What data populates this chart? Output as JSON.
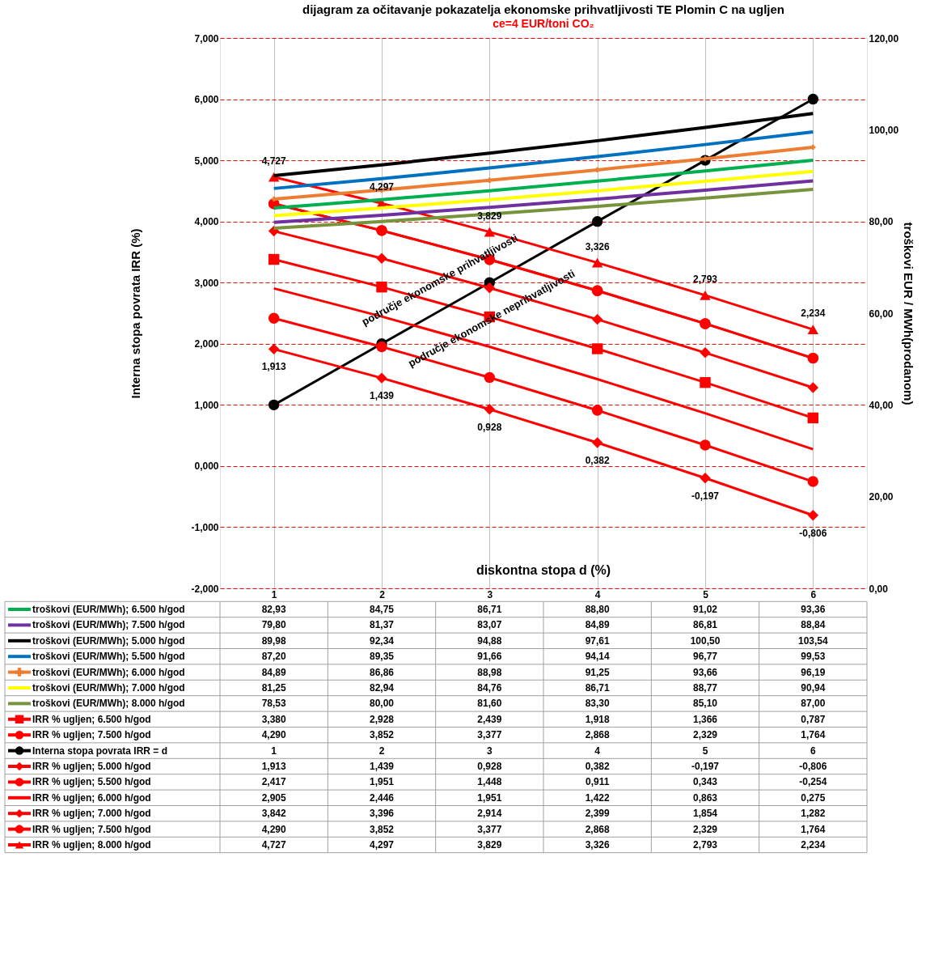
{
  "chart_data": {
    "type": "line",
    "title": "dijagram za očitavanje pokazatelja ekonomske prihvatljivosti TE Plomin C na ugljen",
    "subtitle": "ce=4 EUR/toni CO₂",
    "xlabel": "diskontna stopa d (%)",
    "ylabel": "Interna stopa povrata IRR  (%)",
    "y2label": "troškovi   EUR / MWh(prodanom)",
    "categories": [
      "1",
      "2",
      "3",
      "4",
      "5",
      "6"
    ],
    "ylim": [
      -2,
      7
    ],
    "yticks": [
      {
        "value": -2,
        "label": "-2,000"
      },
      {
        "value": -1,
        "label": "-1,000"
      },
      {
        "value": 0,
        "label": "0,000"
      },
      {
        "value": 1,
        "label": "1,000"
      },
      {
        "value": 2,
        "label": "2,000"
      },
      {
        "value": 3,
        "label": "3,000"
      },
      {
        "value": 4,
        "label": "4,000"
      },
      {
        "value": 5,
        "label": "5,000"
      },
      {
        "value": 6,
        "label": "6,000"
      },
      {
        "value": 7,
        "label": "7,000"
      }
    ],
    "y2lim": [
      0,
      120
    ],
    "y2ticks": [
      {
        "value": 0,
        "label": "0,00"
      },
      {
        "value": 20,
        "label": "20,00"
      },
      {
        "value": 40,
        "label": "40,00"
      },
      {
        "value": 60,
        "label": "60,00"
      },
      {
        "value": 80,
        "label": "80,00"
      },
      {
        "value": 100,
        "label": "100,00"
      },
      {
        "value": 120,
        "label": "120,00"
      }
    ],
    "grid": true,
    "legend": "bottom",
    "series": [
      {
        "name": "troškovi (EUR/MWh); 6.500 h/god",
        "axis": "y2",
        "color": "#00b050",
        "marker": "none",
        "values": [
          82.93,
          84.75,
          86.71,
          88.8,
          91.02,
          93.36
        ],
        "value_labels": [
          "82,93",
          "84,75",
          "86,71",
          "88,80",
          "91,02",
          "93,36"
        ]
      },
      {
        "name": "troškovi (EUR/MWh); 7.500 h/god",
        "axis": "y2",
        "color": "#7030a0",
        "marker": "none",
        "values": [
          79.8,
          81.37,
          83.07,
          84.89,
          86.81,
          88.84
        ],
        "value_labels": [
          "79,80",
          "81,37",
          "83,07",
          "84,89",
          "86,81",
          "88,84"
        ]
      },
      {
        "name": "troškovi (EUR/MWh); 5.000 h/god",
        "axis": "y2",
        "color": "#000000",
        "marker": "none",
        "values": [
          89.98,
          92.34,
          94.88,
          97.61,
          100.5,
          103.54
        ],
        "value_labels": [
          "89,98",
          "92,34",
          "94,88",
          "97,61",
          "100,50",
          "103,54"
        ]
      },
      {
        "name": "troškovi (EUR/MWh); 5.500 h/god",
        "axis": "y2",
        "color": "#0070c0",
        "marker": "none",
        "values": [
          87.2,
          89.35,
          91.66,
          94.14,
          96.77,
          99.53
        ],
        "value_labels": [
          "87,20",
          "89,35",
          "91,66",
          "94,14",
          "96,77",
          "99,53"
        ]
      },
      {
        "name": "troškovi (EUR/MWh); 6.000 h/god",
        "axis": "y2",
        "color": "#ed7d31",
        "marker": "cross",
        "values": [
          84.89,
          86.86,
          88.98,
          91.25,
          93.66,
          96.19
        ],
        "value_labels": [
          "84,89",
          "86,86",
          "88,98",
          "91,25",
          "93,66",
          "96,19"
        ]
      },
      {
        "name": "troškovi (EUR/MWh); 7.000 h/god",
        "axis": "y2",
        "color": "#ffff00",
        "marker": "none",
        "values": [
          81.25,
          82.94,
          84.76,
          86.71,
          88.77,
          90.94
        ],
        "value_labels": [
          "81,25",
          "82,94",
          "84,76",
          "86,71",
          "88,77",
          "90,94"
        ]
      },
      {
        "name": "troškovi (EUR/MWh); 8.000 h/god",
        "axis": "y2",
        "color": "#77933c",
        "marker": "none",
        "values": [
          78.53,
          80.0,
          81.6,
          83.3,
          85.1,
          87.0
        ],
        "value_labels": [
          "78,53",
          "80,00",
          "81,60",
          "83,30",
          "85,10",
          "87,00"
        ]
      },
      {
        "name": "IRR % ugljen; 6.500 h/god",
        "color": "#ff0000",
        "marker": "square",
        "values": [
          3.38,
          2.928,
          2.439,
          1.918,
          1.366,
          0.787
        ],
        "value_labels": [
          "3,380",
          "2,928",
          "2,439",
          "1,918",
          "1,366",
          "0,787"
        ]
      },
      {
        "name": "IRR % ugljen; 7.500 h/god",
        "color": "#ff0000",
        "marker": "circle",
        "values": [
          4.29,
          3.852,
          3.377,
          2.868,
          2.329,
          1.764
        ],
        "value_labels": [
          "4,290",
          "3,852",
          "3,377",
          "2,868",
          "2,329",
          "1,764"
        ]
      },
      {
        "name": "Interna stopa povrata IRR = d",
        "color": "#000000",
        "marker": "circle",
        "values": [
          1,
          2,
          3,
          4,
          5,
          6
        ],
        "value_labels": [
          "1",
          "2",
          "3",
          "4",
          "5",
          "6"
        ]
      },
      {
        "name": "IRR % ugljen; 5.000 h/god",
        "color": "#ff0000",
        "marker": "diamond",
        "values": [
          1.913,
          1.439,
          0.928,
          0.382,
          -0.197,
          -0.806
        ],
        "value_labels": [
          "1,913",
          "1,439",
          "0,928",
          "0,382",
          "-0,197",
          "-0,806"
        ]
      },
      {
        "name": "IRR % ugljen; 5.500 h/god",
        "color": "#ff0000",
        "marker": "circle",
        "values": [
          2.417,
          1.951,
          1.448,
          0.911,
          0.343,
          -0.254
        ],
        "value_labels": [
          "2,417",
          "1,951",
          "1,448",
          "0,911",
          "0,343",
          "-0,254"
        ]
      },
      {
        "name": "IRR % ugljen; 6.000 h/god",
        "color": "#ff0000",
        "marker": "none",
        "values": [
          2.905,
          2.446,
          1.951,
          1.422,
          0.863,
          0.275
        ],
        "value_labels": [
          "2,905",
          "2,446",
          "1,951",
          "1,422",
          "0,863",
          "0,275"
        ]
      },
      {
        "name": "IRR % ugljen; 7.000 h/god",
        "color": "#ff0000",
        "marker": "diamond",
        "values": [
          3.842,
          3.396,
          2.914,
          2.399,
          1.854,
          1.282
        ],
        "value_labels": [
          "3,842",
          "3,396",
          "2,914",
          "2,399",
          "1,854",
          "1,282"
        ]
      },
      {
        "name": "IRR % ugljen; 7.500 h/god",
        "color": "#ff0000",
        "marker": "circle",
        "values": [
          4.29,
          3.852,
          3.377,
          2.868,
          2.329,
          1.764
        ],
        "value_labels": [
          "4,290",
          "3,852",
          "3,377",
          "2,868",
          "2,329",
          "1,764"
        ]
      },
      {
        "name": "IRR % ugljen; 8.000 h/god",
        "color": "#ff0000",
        "marker": "triangle",
        "values": [
          4.727,
          4.297,
          3.829,
          3.326,
          2.793,
          2.234
        ],
        "value_labels": [
          "4,727",
          "4,297",
          "3,829",
          "3,326",
          "2,793",
          "2,234"
        ]
      }
    ],
    "annotations": [
      "područje ekonomske prihvatljivosti",
      "područje ekonomske neprihvatljivosti",
      {
        "text": "4,727",
        "x": "1",
        "y": 4.727
      },
      {
        "text": "4,297",
        "x": "2",
        "y": 4.297
      },
      {
        "text": "3,829",
        "x": "3",
        "y": 3.829
      },
      {
        "text": "3,326",
        "x": "4",
        "y": 3.326
      },
      {
        "text": "2,793",
        "x": "5",
        "y": 2.793
      },
      {
        "text": "2,234",
        "x": "6",
        "y": 2.234
      },
      {
        "text": "1,913",
        "x": "1",
        "y": 1.913
      },
      {
        "text": "1,439",
        "x": "2",
        "y": 1.439
      },
      {
        "text": "0,928",
        "x": "3",
        "y": 0.928
      },
      {
        "text": "0,382",
        "x": "4",
        "y": 0.382
      },
      {
        "text": "-0,197",
        "x": "5",
        "y": -0.197
      },
      {
        "text": "-0,806",
        "x": "6",
        "y": -0.806
      }
    ]
  }
}
